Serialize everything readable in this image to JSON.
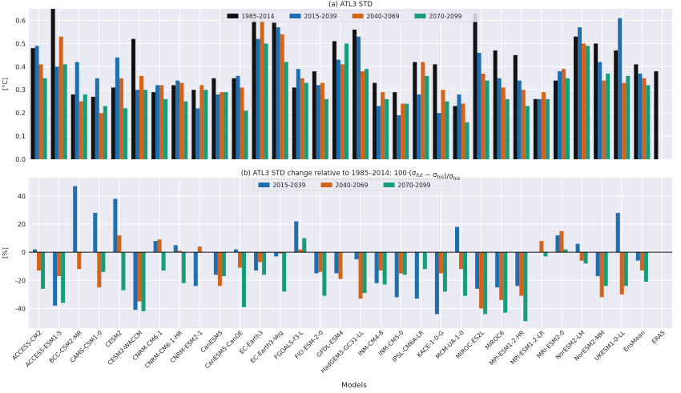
{
  "figure": {
    "xlabel": "Models"
  },
  "models": [
    "ACCESS-CM2",
    "ACCESS-ESM1-5",
    "BCC-CSM2-MR",
    "CAMS-CSM1-0",
    "CESM2",
    "CESM2-WACCM",
    "CNRM-CM6-1",
    "CNRM-CM6-1-HR",
    "CNRM-ESM2-1",
    "CanESM5",
    "CanESM5-CanOE",
    "EC-Earth3",
    "EC-Earth3-Veg",
    "FGOALS-f3-L",
    "FIO-ESM-2-0",
    "GFDL-ESM4",
    "HadGEM3-GC31-LL",
    "INM-CM4-8",
    "INM-CM5-0",
    "IPSL-CM6A-LR",
    "KACE-1-0-G",
    "MCM-UA-1-0",
    "MIROC-ES2L",
    "MIROC6",
    "MPI-ESM1-2-HR",
    "MPI-ESM1-2-LR",
    "MRI-ESM2-0",
    "NorESM2-LM",
    "NorESM2-MM",
    "UKESM1-0-LL",
    "EnsMean",
    "ERA5"
  ],
  "chart_data": [
    {
      "type": "bar",
      "title": "(a) ATL3 STD",
      "ylabel": "[°C]",
      "ylim": [
        0,
        0.65
      ],
      "yticks": [
        0.0,
        0.1,
        0.2,
        0.3,
        0.4,
        0.5,
        0.6
      ],
      "grid": true,
      "legend_position": "top-center",
      "series": [
        {
          "name": "1985-2014",
          "color": "#111111",
          "values": [
            0.48,
            0.65,
            0.28,
            0.27,
            0.31,
            0.52,
            0.29,
            0.32,
            0.3,
            0.35,
            0.35,
            0.6,
            0.59,
            0.31,
            0.38,
            0.51,
            0.56,
            0.33,
            0.29,
            0.42,
            0.41,
            0.23,
            0.63,
            0.47,
            0.45,
            0.26,
            0.34,
            0.53,
            0.5,
            0.47,
            0.41,
            0.38
          ]
        },
        {
          "name": "2015-2039",
          "color": "#1f6eb0",
          "values": [
            0.49,
            0.4,
            0.42,
            0.35,
            0.44,
            0.3,
            0.32,
            0.34,
            0.22,
            0.28,
            0.36,
            0.52,
            0.57,
            0.39,
            0.32,
            0.43,
            0.53,
            0.23,
            0.19,
            0.28,
            0.2,
            0.28,
            0.46,
            0.35,
            0.34,
            0.26,
            0.38,
            0.57,
            0.42,
            0.61,
            0.37,
            null
          ]
        },
        {
          "name": "2040-2069",
          "color": "#d2641e",
          "values": [
            0.41,
            0.53,
            0.25,
            0.2,
            0.35,
            0.36,
            0.32,
            0.33,
            0.32,
            0.29,
            0.31,
            0.6,
            0.54,
            0.35,
            0.33,
            0.41,
            0.38,
            0.29,
            0.24,
            0.42,
            0.3,
            0.24,
            0.37,
            0.31,
            0.3,
            0.29,
            0.39,
            0.5,
            0.34,
            0.33,
            0.35,
            null
          ]
        },
        {
          "name": "2070-2099",
          "color": "#199c7a",
          "values": [
            0.35,
            0.41,
            0.28,
            0.23,
            0.22,
            0.3,
            0.26,
            0.25,
            0.3,
            0.29,
            0.21,
            0.5,
            0.42,
            0.33,
            0.26,
            0.5,
            0.39,
            0.26,
            0.24,
            0.36,
            0.25,
            0.16,
            0.34,
            0.26,
            0.23,
            0.26,
            0.35,
            0.49,
            0.37,
            0.36,
            0.32,
            null
          ]
        }
      ]
    },
    {
      "type": "bar",
      "title": "(b) ATL3 STD change relative to 1985–2014:  100·(σ",
      "title_sub1": "fut",
      "title_mid": " − σ",
      "title_sub2": "his",
      "title_mid2": ")/σ",
      "title_sub3": "his",
      "ylabel": "[%]",
      "ylim": [
        -54,
        53
      ],
      "yticks": [
        -40,
        -20,
        0,
        20,
        40
      ],
      "grid": true,
      "legend_position": "top-center",
      "series": [
        {
          "name": "2015-2039",
          "color": "#1f6eb0",
          "values": [
            2,
            -38,
            47,
            28,
            38,
            -41,
            8,
            5,
            -24,
            -16,
            2,
            -13,
            -3,
            22,
            -15,
            -15,
            -5,
            -22,
            -32,
            -33,
            -44,
            18,
            -26,
            -25,
            -24,
            0,
            12,
            6,
            -17,
            28,
            -6,
            null
          ]
        },
        {
          "name": "2040-2069",
          "color": "#d2641e",
          "values": [
            -13,
            -17,
            -12,
            -25,
            12,
            -35,
            9,
            1,
            4,
            -24,
            -11,
            -7,
            -1,
            2,
            -14,
            -19,
            -33,
            -13,
            -15,
            0,
            -15,
            -12,
            -40,
            -34,
            -31,
            8,
            15,
            -6,
            -32,
            -30,
            -13,
            null
          ]
        },
        {
          "name": "2070-2099",
          "color": "#199c7a",
          "values": [
            -26,
            -36,
            0,
            -14,
            -27,
            -42,
            -13,
            -22,
            0,
            -17,
            -39,
            -16,
            -28,
            10,
            -31,
            0,
            -29,
            -23,
            -16,
            -12,
            -28,
            -31,
            -44,
            -43,
            -49,
            -3,
            2,
            -8,
            -24,
            -24,
            -21,
            null
          ]
        }
      ]
    }
  ]
}
